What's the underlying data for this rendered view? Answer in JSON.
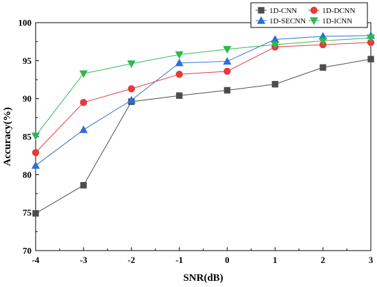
{
  "chart_data": {
    "type": "line",
    "title": "",
    "xlabel": "SNR(dB)",
    "ylabel": "Accuracy(%)",
    "x": [
      -4,
      -3,
      -2,
      -1,
      0,
      1,
      2,
      3
    ],
    "x_tick_labels": [
      "-4",
      "-3",
      "-2",
      "-1",
      "0",
      "1",
      "2",
      "3"
    ],
    "xlim": [
      -4,
      3
    ],
    "ylim": [
      70,
      100
    ],
    "y_ticks": [
      70,
      75,
      80,
      85,
      90,
      95,
      100
    ],
    "y_tick_labels": [
      "70",
      "75",
      "80",
      "85",
      "90",
      "95",
      "100"
    ],
    "grid": false,
    "legend_position": "top-right",
    "series": [
      {
        "name": "1D-CNN",
        "color": "#4d4d4d",
        "marker": "square",
        "values": [
          74.9,
          78.6,
          89.6,
          90.4,
          91.1,
          91.9,
          94.1,
          95.2
        ]
      },
      {
        "name": "1D-DCNN",
        "color": "#e8393b",
        "marker": "circle",
        "values": [
          82.9,
          89.5,
          91.3,
          93.2,
          93.6,
          96.8,
          97.1,
          97.4
        ]
      },
      {
        "name": "1D-SECNN",
        "color": "#2e6fd8",
        "marker": "triangle-up",
        "values": [
          81.2,
          85.9,
          89.8,
          94.7,
          94.9,
          97.8,
          98.2,
          98.3
        ]
      },
      {
        "name": "1D-ICNN",
        "color": "#2fb84e",
        "marker": "triangle-down",
        "values": [
          85.1,
          93.3,
          94.6,
          95.8,
          96.5,
          97.1,
          97.6,
          98.0
        ]
      }
    ]
  }
}
